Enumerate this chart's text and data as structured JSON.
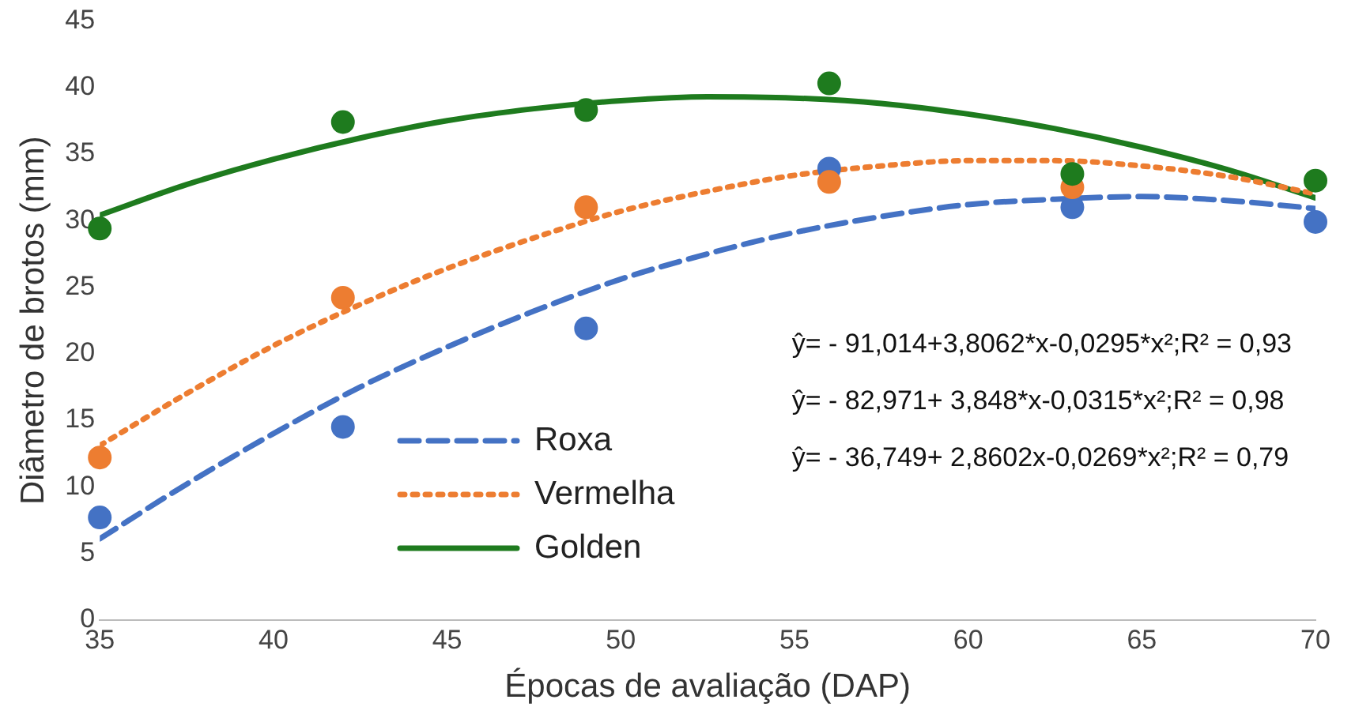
{
  "chart_data": {
    "type": "scatter",
    "xlabel": "Épocas de avaliação (DAP)",
    "ylabel": "Diâmetro de brotos (mm)",
    "x": [
      35,
      42,
      49,
      56,
      63,
      70
    ],
    "xlim": [
      35,
      70
    ],
    "xticks": [
      35,
      40,
      45,
      50,
      55,
      60,
      65,
      70
    ],
    "ylim": [
      0,
      45
    ],
    "yticks": [
      0,
      5,
      10,
      15,
      20,
      25,
      30,
      35,
      40,
      45
    ],
    "legend": "left",
    "series": [
      {
        "color": "#4472c4",
        "marker": "circle",
        "values": [
          7.7,
          14.5,
          21.9,
          33.9,
          31.0,
          29.9
        ]
      },
      {
        "color": "#ed7d31",
        "marker": "circle",
        "values": [
          12.2,
          24.2,
          31.0,
          32.9,
          32.5,
          null
        ]
      },
      {
        "color": "#1e7b1e",
        "marker": "circle",
        "values": [
          29.4,
          37.4,
          38.3,
          40.3,
          33.5,
          33.0
        ]
      },
      {
        "type": "line",
        "name": "Roxa",
        "color": "#4472c4",
        "line_style": "dashed",
        "marker": "none",
        "x": [
          35,
          37.5,
          40,
          42.5,
          45,
          47.5,
          50,
          52.5,
          55,
          57.5,
          60,
          62.5,
          65,
          67.5,
          70
        ],
        "values": [
          6.1,
          10.2,
          14.0,
          17.5,
          20.5,
          23.2,
          25.6,
          27.5,
          29.1,
          30.3,
          31.2,
          31.6,
          31.8,
          31.5,
          30.9
        ]
      },
      {
        "type": "line",
        "name": "Vermelha",
        "color": "#ed7d31",
        "line_style": "dotted",
        "marker": "none",
        "x": [
          35,
          37.5,
          40,
          42.5,
          45,
          47.5,
          50,
          52.5,
          55,
          57.5,
          60,
          62.5,
          65,
          67.5,
          70
        ],
        "values": [
          13.1,
          17.0,
          20.6,
          23.7,
          26.4,
          28.7,
          30.7,
          32.2,
          33.4,
          34.1,
          34.5,
          34.5,
          34.1,
          33.3,
          32.0
        ]
      },
      {
        "type": "line",
        "name": "Golden",
        "color": "#1e7b1e",
        "line_style": "solid",
        "marker": "none",
        "x": [
          35,
          37.5,
          40,
          42.5,
          45,
          47.5,
          50,
          52.5,
          55,
          57.5,
          60,
          62.5,
          65,
          67.5,
          70
        ],
        "values": [
          30.4,
          32.7,
          34.6,
          36.2,
          37.5,
          38.4,
          39.0,
          39.3,
          39.2,
          38.8,
          38.0,
          36.9,
          35.5,
          33.8,
          31.7
        ]
      }
    ],
    "annotations": [
      "ŷ= - 91,014+3,8062*x-0,0295*x²;R² = 0,93",
      "ŷ= - 82,971+ 3,848*x-0,0315*x²;R² = 0,98",
      "ŷ= - 36,749+ 2,8602x-0,0269*x²;R² = 0,79"
    ]
  }
}
